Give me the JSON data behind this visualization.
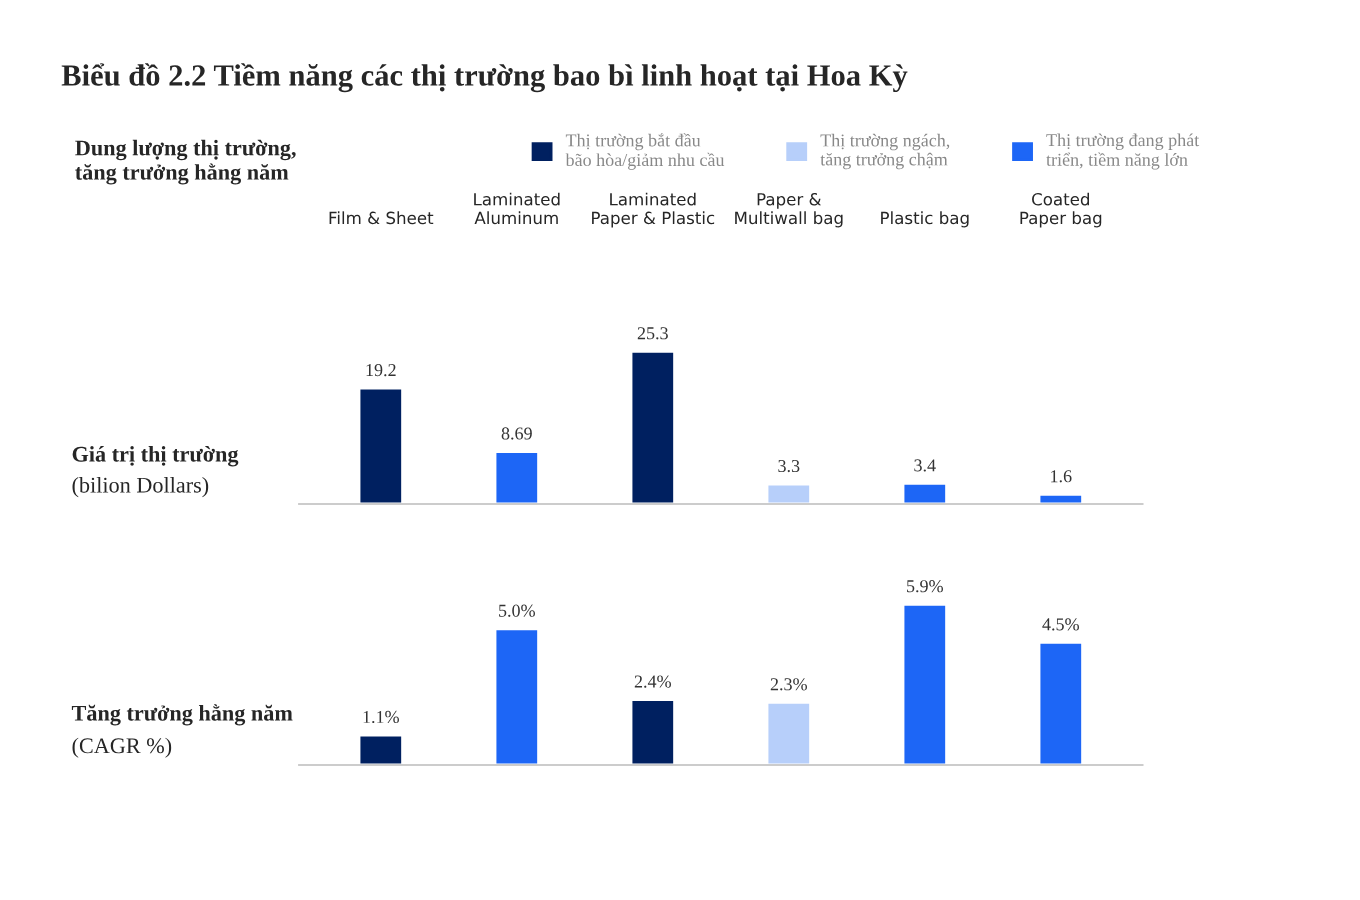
{
  "chart_data": [
    {
      "type": "bar",
      "title": "Biểu đồ 2.2 Tiềm năng các thị trường bao bì linh hoạt tại Hoa Kỳ",
      "legend_title": "Dung lượng thị trường,\ntăng trưởng hằng năm",
      "ylabel": "Giá trị thị trường\n(bilion Dollars)",
      "categories": [
        "Film & Sheet",
        "Laminated\nAluminum",
        "Laminated\nPaper & Plastic",
        "Paper &\nMultiwall bag",
        "Plastic bag",
        "Coated\nPaper bag"
      ],
      "series": [
        {
          "name": "Thị trường bắt đầu\nbão hòa/giảm nhu cầu",
          "color": "#002060",
          "values": [
            19.2,
            null,
            25.3,
            null,
            null,
            null
          ]
        },
        {
          "name": "Thị trường ngách,\ntăng trưởng chậm",
          "color": "#b7cffa",
          "values": [
            null,
            null,
            null,
            3.3,
            null,
            null
          ]
        },
        {
          "name": "Thị trường đang phát\ntriển, tiềm năng lớn",
          "color": "#1d66f6",
          "values": [
            null,
            8.69,
            null,
            null,
            3.4,
            1.6
          ]
        }
      ],
      "data_labels": true,
      "legend": "top",
      "tick_labels": "x",
      "grid": false
    },
    {
      "type": "bar",
      "ylabel": "Tăng trưởng hằng năm\n(CAGR %)",
      "categories": [
        null,
        null,
        null,
        null,
        null,
        null
      ],
      "series": [
        {
          "color": "#002060",
          "values": [
            1.1,
            null,
            2.4,
            null,
            null,
            null
          ],
          "value_labels": [
            "1.1%",
            null,
            "2.4%",
            null,
            null,
            null
          ]
        },
        {
          "color": "#b7cffa",
          "values": [
            null,
            null,
            null,
            2.3,
            null,
            null
          ],
          "value_labels": [
            null,
            null,
            null,
            "2.3%",
            null,
            null
          ]
        },
        {
          "color": "#1d66f6",
          "values": [
            null,
            5.0,
            null,
            null,
            5.9,
            4.5
          ],
          "value_labels": [
            null,
            "5.0%",
            null,
            null,
            "5.9%",
            "4.5%"
          ]
        }
      ],
      "tick_labels": false,
      "grid": false
    }
  ]
}
